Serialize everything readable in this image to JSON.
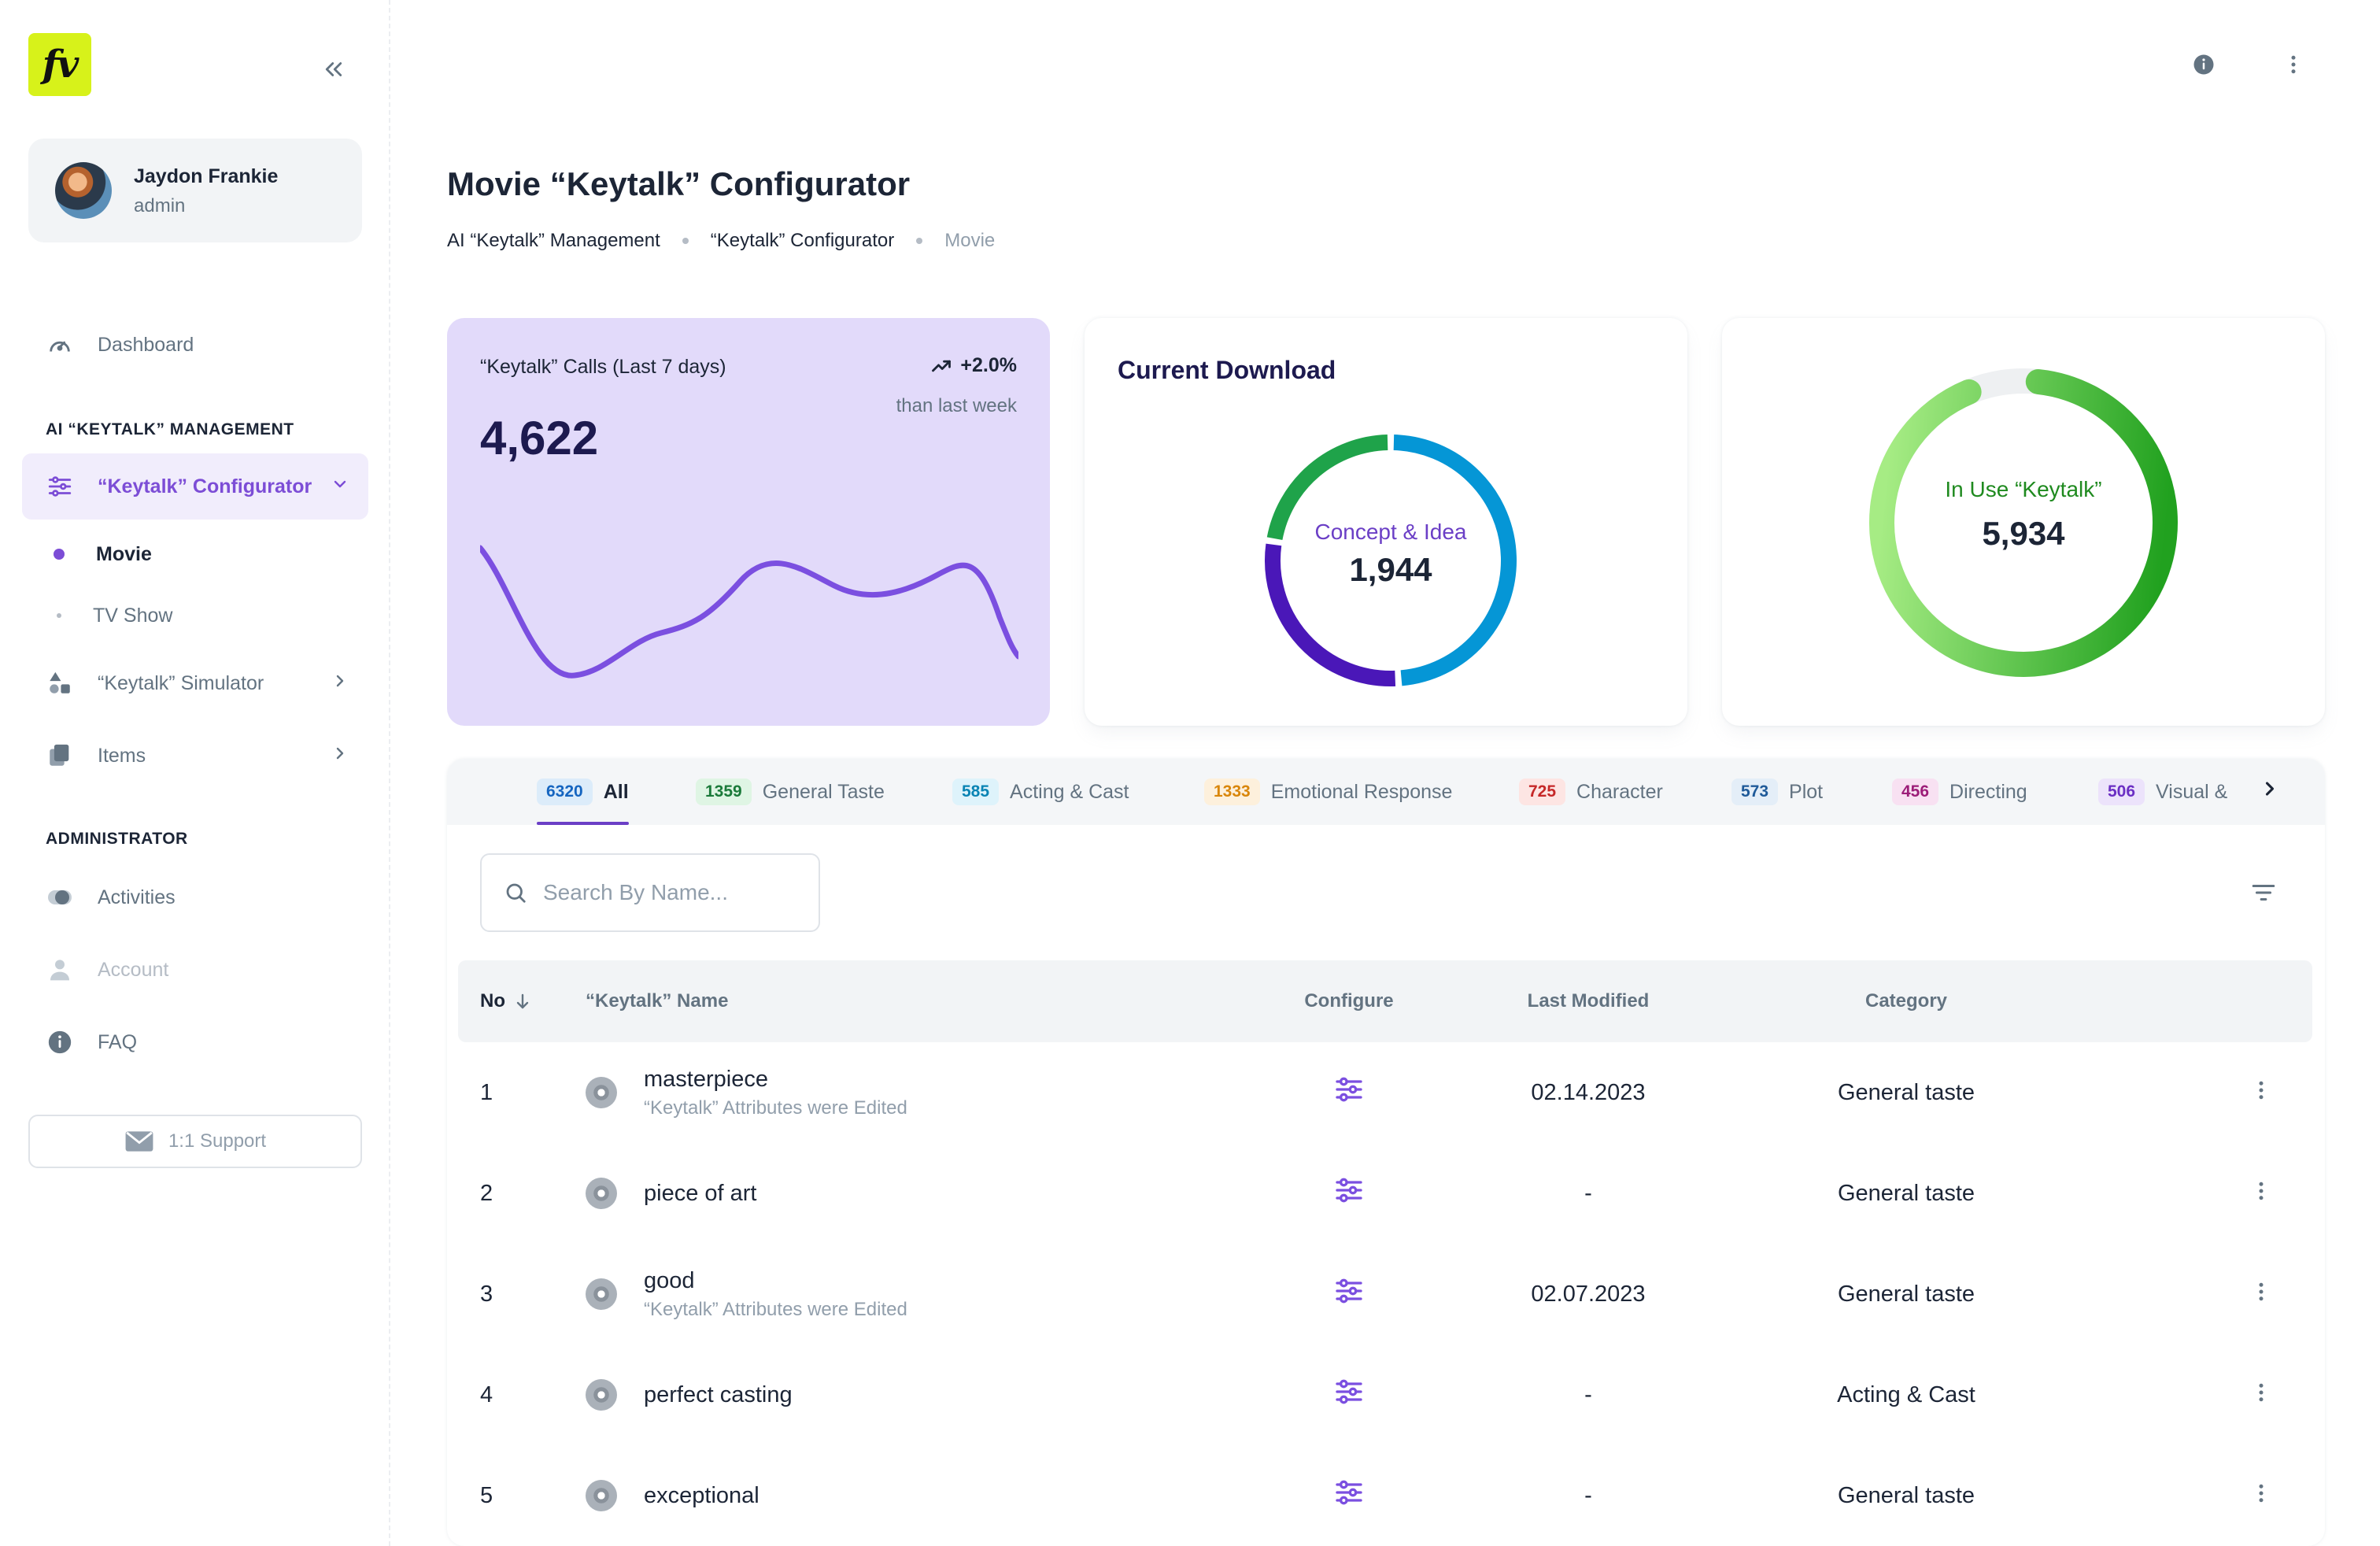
{
  "app": {
    "logo_text": "fv"
  },
  "user": {
    "name": "Jaydon Frankie",
    "role": "admin"
  },
  "sidebar": {
    "dashboard": "Dashboard",
    "section_ai": "AI “KEYTALK” MANAGEMENT",
    "configurator": "“Keytalk” Configurator",
    "sub_movie": "Movie",
    "sub_tvshow": "TV Show",
    "simulator": "“Keytalk” Simulator",
    "items": "Items",
    "section_admin": "ADMINISTRATOR",
    "activities": "Activities",
    "account": "Account",
    "faq": "FAQ",
    "support": "1:1 Support"
  },
  "header": {
    "title": "Movie “Keytalk” Configurator",
    "breadcrumb": [
      "AI “Keytalk” Management",
      "“Keytalk” Configurator",
      "Movie"
    ]
  },
  "calls_card": {
    "label": "“Keytalk” Calls (Last 7 days)",
    "value": "4,622",
    "trend": "+2.0%",
    "trend_sub": "than last week",
    "color": "#7b4fe0"
  },
  "download_card": {
    "title": "Current Download",
    "center_label": "Concept & Idea",
    "center_value": "1,944",
    "segments": [
      {
        "value": 48,
        "color": "#0596d6"
      },
      {
        "value": 28,
        "color": "#4a17b8"
      },
      {
        "value": 22,
        "color": "#1fa34a"
      }
    ]
  },
  "inuse_card": {
    "label": "In Use “Keytalk”",
    "value": "5,934",
    "fraction": 0.92,
    "color_start": "#a6ec84",
    "color_end": "#21a11f"
  },
  "tabs": [
    {
      "count": "6320",
      "label": "All",
      "bg": "#dcecfa",
      "fg": "#1565c0",
      "active": true
    },
    {
      "count": "1359",
      "label": "General Taste",
      "bg": "#dff5e4",
      "fg": "#1b7a3a"
    },
    {
      "count": "585",
      "label": "Acting & Cast",
      "bg": "#def3fb",
      "fg": "#0a84b4"
    },
    {
      "count": "1333",
      "label": "Emotional Response",
      "bg": "#fdf0dc",
      "fg": "#d9860b"
    },
    {
      "count": "725",
      "label": "Character",
      "bg": "#fde5e3",
      "fg": "#c62828"
    },
    {
      "count": "573",
      "label": "Plot",
      "bg": "#e4eef8",
      "fg": "#1f5a99"
    },
    {
      "count": "456",
      "label": "Directing",
      "bg": "#f8e1f2",
      "fg": "#9c1d78"
    },
    {
      "count": "506",
      "label": "Visual &",
      "bg": "#ece3fb",
      "fg": "#6b2fc4"
    }
  ],
  "search": {
    "placeholder": "Search By Name..."
  },
  "table": {
    "headers": {
      "no": "No",
      "name": "“Keytalk” Name",
      "configure": "Configure",
      "modified": "Last Modified",
      "category": "Category"
    },
    "rows": [
      {
        "no": "1",
        "name": "masterpiece",
        "sub": "“Keytalk” Attributes were Edited",
        "modified": "02.14.2023",
        "category": "General taste"
      },
      {
        "no": "2",
        "name": "piece of art",
        "sub": "",
        "modified": "-",
        "category": "General taste"
      },
      {
        "no": "3",
        "name": "good",
        "sub": "“Keytalk” Attributes were Edited",
        "modified": "02.07.2023",
        "category": "General taste"
      },
      {
        "no": "4",
        "name": "perfect casting",
        "sub": "",
        "modified": "-",
        "category": "Acting & Cast"
      },
      {
        "no": "5",
        "name": "exceptional",
        "sub": "",
        "modified": "-",
        "category": "General taste"
      }
    ]
  }
}
